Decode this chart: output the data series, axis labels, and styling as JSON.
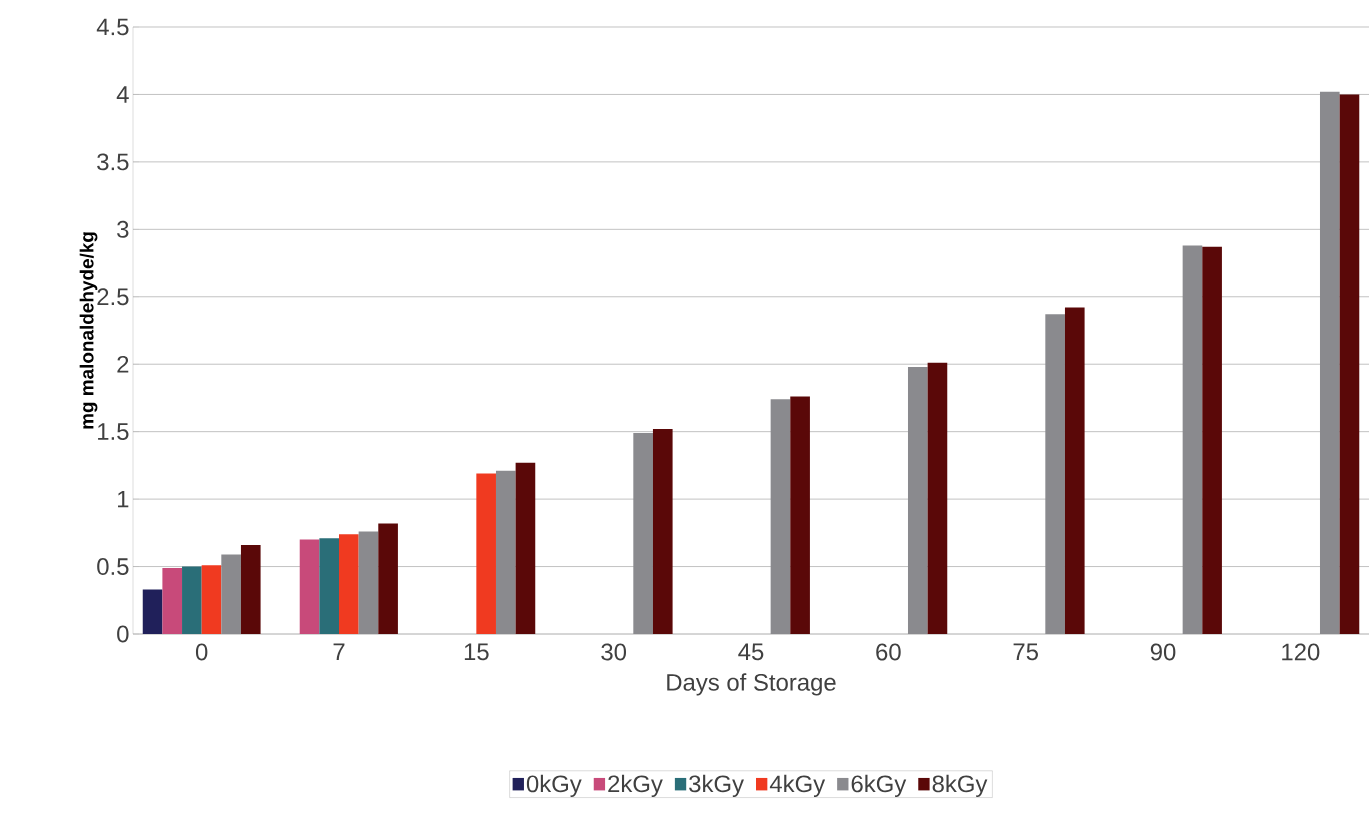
{
  "chart_data": {
    "type": "bar",
    "xlabel": "Days of Storage",
    "ylabel": "mg malonaldehyde/kg",
    "categories": [
      "0",
      "7",
      "15",
      "30",
      "45",
      "60",
      "75",
      "90",
      "120"
    ],
    "series": [
      {
        "name": "0kGy",
        "color": "#20205a",
        "values": [
          0.33,
          null,
          null,
          null,
          null,
          null,
          null,
          null,
          null
        ]
      },
      {
        "name": "2kGy",
        "color": "#c84a7a",
        "values": [
          0.49,
          0.7,
          null,
          null,
          null,
          null,
          null,
          null,
          null
        ]
      },
      {
        "name": "3kGy",
        "color": "#2a6e78",
        "values": [
          0.5,
          0.71,
          null,
          null,
          null,
          null,
          null,
          null,
          null
        ]
      },
      {
        "name": "4kGy",
        "color": "#f03a20",
        "values": [
          0.51,
          0.74,
          1.19,
          null,
          null,
          null,
          null,
          null,
          null
        ]
      },
      {
        "name": "6kGy",
        "color": "#8a8a8e",
        "values": [
          0.59,
          0.76,
          1.21,
          1.49,
          1.74,
          1.98,
          2.37,
          2.88,
          4.02
        ]
      },
      {
        "name": "8kGy",
        "color": "#5a0808",
        "values": [
          0.66,
          0.82,
          1.27,
          1.52,
          1.76,
          2.01,
          2.42,
          2.87,
          4.0
        ]
      }
    ],
    "ylim": [
      0,
      4.5
    ],
    "yticks": [
      0,
      0.5,
      1,
      1.5,
      2,
      2.5,
      3,
      3.5,
      4,
      4.5
    ],
    "grid": "y",
    "legend": "bottom"
  }
}
